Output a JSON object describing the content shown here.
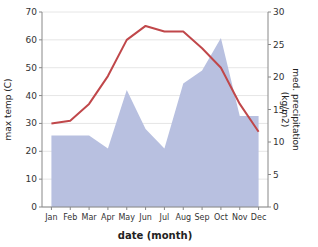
{
  "chart_data": {
    "type": "line",
    "categories": [
      "Jan",
      "Feb",
      "Mar",
      "Apr",
      "May",
      "Jun",
      "Jul",
      "Aug",
      "Sep",
      "Oct",
      "Nov",
      "Dec"
    ],
    "xlabel": "date (month)",
    "ylabel": "max temp (C)",
    "y2label": "med. precipitation\n(kg/m2)",
    "series": [
      {
        "type": "area",
        "axis": "y2",
        "color": "#b8c0e0",
        "values": [
          11,
          11,
          11,
          9,
          18,
          12,
          9,
          19,
          21,
          26,
          14,
          14
        ]
      },
      {
        "type": "line",
        "color": "#c0474a",
        "values": [
          30,
          31,
          37,
          47,
          60,
          65,
          63,
          63,
          57,
          50,
          37,
          27
        ]
      }
    ],
    "ylim": [
      0,
      70
    ],
    "yticks": [
      0,
      10,
      20,
      30,
      40,
      50,
      60,
      70
    ],
    "y2lim": [
      0,
      30
    ],
    "y2ticks": [
      0,
      5,
      10,
      15,
      20,
      25,
      30
    ],
    "grid": true
  }
}
